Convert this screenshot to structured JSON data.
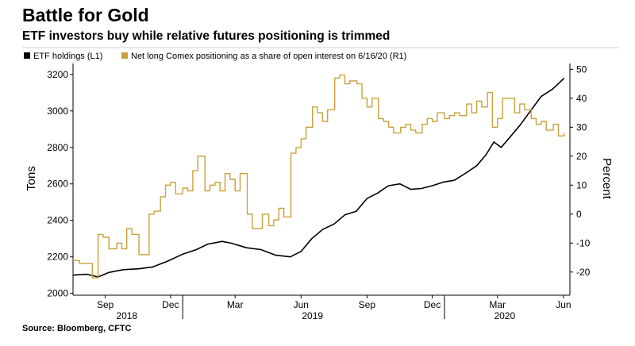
{
  "header": {
    "title": "Battle for Gold",
    "subtitle": "ETF investors buy while relative futures positioning is trimmed"
  },
  "footer": {
    "source": "Source: Bloomberg, CFTC"
  },
  "colors": {
    "etf_line": "#000000",
    "positioning_line": "#c9a13c",
    "axis": "#000000",
    "text": "#000000"
  },
  "chart_data": {
    "type": "line",
    "grid": false,
    "legend_placement": "top-left",
    "xlabel": "",
    "x_ticks": [
      "Sep",
      "Dec",
      "Mar",
      "Jun",
      "Sep",
      "Dec",
      "Mar",
      "Jun"
    ],
    "x_year_labels": [
      "2018",
      "2019",
      "2020"
    ],
    "y_left": {
      "label": "Tons",
      "range": [
        1990,
        3260
      ],
      "ticks": [
        2000,
        2200,
        2400,
        2600,
        2800,
        3000,
        3200
      ]
    },
    "y_right": {
      "label": "Percent",
      "range": [
        -28,
        52
      ],
      "ticks": [
        -20,
        -10,
        0,
        10,
        20,
        30,
        40,
        50
      ]
    },
    "series": [
      {
        "name": "ETF holdings (L1)",
        "axis": "left",
        "color": "#000000",
        "x": [
          "2018-08-01",
          "2018-08-20",
          "2018-09-05",
          "2018-09-20",
          "2018-10-10",
          "2018-11-01",
          "2018-11-20",
          "2018-12-10",
          "2019-01-01",
          "2019-01-20",
          "2019-02-05",
          "2019-02-25",
          "2019-03-10",
          "2019-03-31",
          "2019-04-20",
          "2019-05-10",
          "2019-05-31",
          "2019-06-15",
          "2019-06-30",
          "2019-07-15",
          "2019-07-31",
          "2019-08-15",
          "2019-08-31",
          "2019-09-15",
          "2019-09-30",
          "2019-10-15",
          "2019-10-31",
          "2019-11-15",
          "2019-11-30",
          "2019-12-15",
          "2019-12-31",
          "2020-01-15",
          "2020-01-31",
          "2020-02-15",
          "2020-02-28",
          "2020-03-10",
          "2020-03-20",
          "2020-03-31",
          "2020-04-15",
          "2020-04-30",
          "2020-05-15",
          "2020-05-31",
          "2020-06-16"
        ],
        "values": [
          2100,
          2105,
          2090,
          2115,
          2130,
          2135,
          2145,
          2175,
          2215,
          2240,
          2270,
          2285,
          2275,
          2250,
          2240,
          2210,
          2200,
          2230,
          2300,
          2350,
          2380,
          2430,
          2450,
          2520,
          2550,
          2590,
          2600,
          2570,
          2575,
          2590,
          2610,
          2620,
          2660,
          2700,
          2760,
          2830,
          2800,
          2850,
          2920,
          3000,
          3080,
          3120,
          3180
        ]
      },
      {
        "name": "Net long Comex positioning as a share of open interest on 6/16/20 (R1)",
        "axis": "right",
        "color": "#c9a13c",
        "x": [
          "2018-08-01",
          "2018-08-10",
          "2018-08-20",
          "2018-08-28",
          "2018-09-05",
          "2018-09-12",
          "2018-09-20",
          "2018-10-01",
          "2018-10-08",
          "2018-10-15",
          "2018-10-22",
          "2018-11-01",
          "2018-11-08",
          "2018-11-15",
          "2018-11-22",
          "2018-12-01",
          "2018-12-08",
          "2018-12-15",
          "2018-12-22",
          "2019-01-01",
          "2019-01-08",
          "2019-01-15",
          "2019-01-22",
          "2019-02-01",
          "2019-02-08",
          "2019-02-15",
          "2019-02-22",
          "2019-03-01",
          "2019-03-08",
          "2019-03-15",
          "2019-03-22",
          "2019-04-01",
          "2019-04-08",
          "2019-04-15",
          "2019-04-22",
          "2019-05-01",
          "2019-05-08",
          "2019-05-15",
          "2019-05-22",
          "2019-06-01",
          "2019-06-08",
          "2019-06-15",
          "2019-06-22",
          "2019-07-01",
          "2019-07-08",
          "2019-07-15",
          "2019-07-22",
          "2019-08-01",
          "2019-08-08",
          "2019-08-15",
          "2019-08-22",
          "2019-09-01",
          "2019-09-08",
          "2019-09-15",
          "2019-09-22",
          "2019-10-01",
          "2019-10-08",
          "2019-10-15",
          "2019-10-22",
          "2019-11-01",
          "2019-11-08",
          "2019-11-15",
          "2019-11-22",
          "2019-12-01",
          "2019-12-08",
          "2019-12-15",
          "2019-12-22",
          "2020-01-01",
          "2020-01-08",
          "2020-01-15",
          "2020-01-22",
          "2020-02-01",
          "2020-02-08",
          "2020-02-15",
          "2020-02-22",
          "2020-03-01",
          "2020-03-08",
          "2020-03-15",
          "2020-03-22",
          "2020-04-01",
          "2020-04-08",
          "2020-04-15",
          "2020-04-22",
          "2020-05-01",
          "2020-05-08",
          "2020-05-15",
          "2020-05-22",
          "2020-06-01",
          "2020-06-08",
          "2020-06-16"
        ],
        "values": [
          -16,
          -17,
          -17,
          -22,
          -7,
          -8,
          -12,
          -10,
          -12,
          -5,
          -7,
          -14,
          -14,
          0,
          1,
          6,
          10,
          11,
          7,
          9,
          8,
          15,
          20,
          8,
          10,
          11,
          8,
          14,
          12,
          8,
          14,
          0,
          -5,
          -5,
          0,
          -4,
          -2,
          2,
          -1,
          21,
          23,
          26,
          30,
          37,
          35,
          32,
          36,
          47,
          48,
          45,
          46,
          45,
          40,
          37,
          40,
          33,
          32,
          30,
          28,
          30,
          31,
          29,
          28,
          31,
          33,
          32,
          35,
          33,
          34,
          35,
          34,
          38,
          35,
          39,
          37,
          42,
          30,
          33,
          40,
          40,
          35,
          38,
          36,
          33,
          31,
          32,
          29,
          31,
          27,
          28
        ]
      }
    ]
  }
}
